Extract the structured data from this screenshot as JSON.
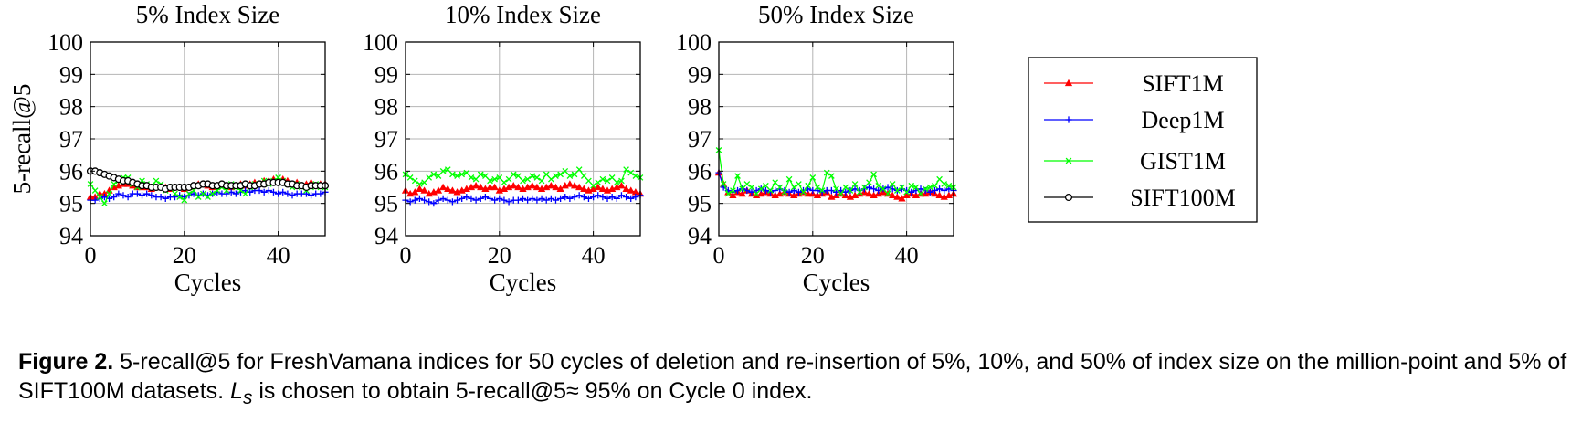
{
  "chart_data": [
    {
      "type": "line",
      "title": "5% Index Size",
      "xlabel": "Cycles",
      "ylabel": "5-recall@5",
      "xlim": [
        0,
        50
      ],
      "ylim": [
        94,
        100
      ],
      "xticks": [
        "0",
        "20",
        "40"
      ],
      "yticks": [
        "94",
        "95",
        "96",
        "97",
        "98",
        "99",
        "100"
      ],
      "grid": true,
      "series": [
        {
          "name": "SIFT1M",
          "values": [
            95.2,
            95.2,
            95.3,
            95.3,
            95.4,
            95.5,
            95.55,
            95.6,
            95.6,
            95.55,
            95.5,
            95.5,
            95.5,
            95.45,
            95.5,
            95.5,
            95.5,
            95.45,
            95.5,
            95.5,
            95.45,
            95.5,
            95.55,
            95.6,
            95.6,
            95.55,
            95.5,
            95.55,
            95.6,
            95.55,
            95.5,
            95.55,
            95.6,
            95.55,
            95.6,
            95.65,
            95.6,
            95.7,
            95.7,
            95.75,
            95.7,
            95.75,
            95.7,
            95.6,
            95.65,
            95.55,
            95.6,
            95.65,
            95.55,
            95.6,
            95.6
          ]
        },
        {
          "name": "Deep1M",
          "values": [
            95.1,
            95.1,
            95.15,
            95.2,
            95.15,
            95.2,
            95.3,
            95.25,
            95.2,
            95.3,
            95.3,
            95.25,
            95.3,
            95.25,
            95.2,
            95.2,
            95.15,
            95.2,
            95.2,
            95.25,
            95.2,
            95.25,
            95.3,
            95.25,
            95.3,
            95.25,
            95.3,
            95.35,
            95.3,
            95.3,
            95.35,
            95.3,
            95.35,
            95.4,
            95.35,
            95.4,
            95.4,
            95.35,
            95.4,
            95.35,
            95.3,
            95.35,
            95.3,
            95.25,
            95.3,
            95.3,
            95.3,
            95.25,
            95.3,
            95.3,
            95.35
          ]
        },
        {
          "name": "GIST1M",
          "values": [
            95.6,
            95.4,
            95.2,
            95.0,
            95.3,
            95.6,
            95.7,
            95.8,
            95.8,
            95.6,
            95.5,
            95.7,
            95.6,
            95.5,
            95.7,
            95.6,
            95.4,
            95.5,
            95.3,
            95.2,
            95.1,
            95.3,
            95.4,
            95.2,
            95.3,
            95.2,
            95.3,
            95.4,
            95.5,
            95.4,
            95.6,
            95.5,
            95.4,
            95.3,
            95.5,
            95.6,
            95.6,
            95.7,
            95.6,
            95.7,
            95.8,
            95.7,
            95.6,
            95.5,
            95.6,
            95.5,
            95.4,
            95.5,
            95.6,
            95.5,
            95.5
          ]
        },
        {
          "name": "SIFT100M",
          "values": [
            96.0,
            96.0,
            95.95,
            95.9,
            95.85,
            95.8,
            95.75,
            95.7,
            95.7,
            95.65,
            95.6,
            95.55,
            95.55,
            95.5,
            95.5,
            95.5,
            95.45,
            95.5,
            95.5,
            95.5,
            95.5,
            95.5,
            95.55,
            95.55,
            95.6,
            95.6,
            95.55,
            95.55,
            95.6,
            95.55,
            95.55,
            95.55,
            95.55,
            95.6,
            95.55,
            95.55,
            95.6,
            95.6,
            95.65,
            95.65,
            95.65,
            95.65,
            95.6,
            95.6,
            95.55,
            95.55,
            95.5,
            95.55,
            95.55,
            95.55,
            95.55
          ]
        }
      ]
    },
    {
      "type": "line",
      "title": "10% Index Size",
      "xlabel": "Cycles",
      "ylabel": "",
      "xlim": [
        0,
        50
      ],
      "ylim": [
        94,
        100
      ],
      "xticks": [
        "0",
        "20",
        "40"
      ],
      "yticks": [
        "94",
        "95",
        "96",
        "97",
        "98",
        "99",
        "100"
      ],
      "grid": true,
      "series": [
        {
          "name": "SIFT1M",
          "values": [
            95.4,
            95.3,
            95.35,
            95.45,
            95.4,
            95.3,
            95.35,
            95.4,
            95.5,
            95.45,
            95.4,
            95.35,
            95.4,
            95.45,
            95.5,
            95.55,
            95.5,
            95.45,
            95.5,
            95.5,
            95.4,
            95.45,
            95.5,
            95.55,
            95.5,
            95.45,
            95.5,
            95.55,
            95.5,
            95.45,
            95.5,
            95.55,
            95.5,
            95.45,
            95.55,
            95.6,
            95.55,
            95.5,
            95.45,
            95.4,
            95.45,
            95.5,
            95.45,
            95.4,
            95.45,
            95.5,
            95.55,
            95.45,
            95.4,
            95.35,
            95.3
          ]
        },
        {
          "name": "Deep1M",
          "values": [
            95.1,
            95.05,
            95.1,
            95.15,
            95.1,
            95.05,
            95.0,
            95.1,
            95.15,
            95.1,
            95.05,
            95.1,
            95.15,
            95.2,
            95.15,
            95.1,
            95.15,
            95.2,
            95.15,
            95.1,
            95.15,
            95.1,
            95.05,
            95.1,
            95.1,
            95.15,
            95.1,
            95.15,
            95.1,
            95.15,
            95.1,
            95.15,
            95.1,
            95.15,
            95.2,
            95.15,
            95.2,
            95.25,
            95.2,
            95.15,
            95.2,
            95.25,
            95.2,
            95.15,
            95.2,
            95.15,
            95.25,
            95.2,
            95.15,
            95.2,
            95.25
          ]
        },
        {
          "name": "GIST1M",
          "values": [
            95.9,
            95.8,
            95.7,
            95.6,
            95.65,
            95.8,
            95.9,
            95.85,
            96.0,
            96.05,
            95.9,
            95.85,
            95.9,
            95.95,
            95.8,
            95.75,
            95.9,
            95.85,
            95.7,
            95.75,
            95.8,
            95.65,
            95.75,
            95.9,
            95.85,
            95.7,
            95.75,
            95.85,
            95.8,
            95.7,
            95.9,
            95.75,
            95.85,
            95.9,
            96.0,
            95.85,
            95.9,
            96.05,
            95.85,
            95.7,
            95.55,
            95.65,
            95.75,
            95.7,
            95.8,
            95.65,
            95.7,
            96.05,
            95.95,
            95.85,
            95.8
          ]
        },
        {
          "name": "SIFT100M",
          "values": []
        }
      ]
    },
    {
      "type": "line",
      "title": "50% Index Size",
      "xlabel": "Cycles",
      "ylabel": "",
      "xlim": [
        0,
        50
      ],
      "ylim": [
        94,
        100
      ],
      "xticks": [
        "0",
        "20",
        "40"
      ],
      "yticks": [
        "94",
        "95",
        "96",
        "97",
        "98",
        "99",
        "100"
      ],
      "grid": true,
      "series": [
        {
          "name": "SIFT1M",
          "values": [
            95.95,
            95.6,
            95.35,
            95.25,
            95.35,
            95.3,
            95.4,
            95.3,
            95.25,
            95.3,
            95.35,
            95.3,
            95.25,
            95.3,
            95.35,
            95.3,
            95.25,
            95.3,
            95.35,
            95.3,
            95.3,
            95.25,
            95.3,
            95.35,
            95.2,
            95.25,
            95.3,
            95.25,
            95.2,
            95.25,
            95.3,
            95.35,
            95.3,
            95.25,
            95.3,
            95.35,
            95.3,
            95.25,
            95.2,
            95.15,
            95.25,
            95.3,
            95.25,
            95.3,
            95.3,
            95.35,
            95.3,
            95.25,
            95.2,
            95.25,
            95.3
          ]
        },
        {
          "name": "Deep1M",
          "values": [
            95.95,
            95.5,
            95.4,
            95.35,
            95.4,
            95.45,
            95.4,
            95.35,
            95.4,
            95.45,
            95.4,
            95.35,
            95.4,
            95.45,
            95.4,
            95.35,
            95.4,
            95.35,
            95.4,
            95.45,
            95.4,
            95.4,
            95.35,
            95.4,
            95.4,
            95.35,
            95.4,
            95.35,
            95.4,
            95.45,
            95.4,
            95.45,
            95.5,
            95.45,
            95.4,
            95.45,
            95.5,
            95.45,
            95.4,
            95.45,
            95.4,
            95.35,
            95.4,
            95.45,
            95.4,
            95.35,
            95.4,
            95.45,
            95.4,
            95.45,
            95.4
          ]
        },
        {
          "name": "GIST1M",
          "values": [
            96.65,
            95.6,
            95.3,
            95.4,
            95.85,
            95.45,
            95.6,
            95.5,
            95.3,
            95.45,
            95.55,
            95.4,
            95.65,
            95.5,
            95.35,
            95.75,
            95.5,
            95.6,
            95.35,
            95.55,
            95.8,
            95.5,
            95.4,
            95.95,
            95.85,
            95.45,
            95.3,
            95.5,
            95.4,
            95.6,
            95.35,
            95.5,
            95.65,
            95.9,
            95.55,
            95.45,
            95.3,
            95.6,
            95.4,
            95.5,
            95.35,
            95.55,
            95.5,
            95.3,
            95.45,
            95.5,
            95.55,
            95.75,
            95.6,
            95.55,
            95.5
          ]
        },
        {
          "name": "SIFT100M",
          "values": []
        }
      ]
    }
  ],
  "legend": {
    "placement": "right",
    "entries": [
      {
        "name": "SIFT1M",
        "color": "#ff0000",
        "marker": "triangle"
      },
      {
        "name": "Deep1M",
        "color": "#0000ff",
        "marker": "plus"
      },
      {
        "name": "GIST1M",
        "color": "#00ff00",
        "marker": "cross"
      },
      {
        "name": "SIFT100M",
        "color": "#000000",
        "marker": "circle"
      }
    ]
  },
  "caption": {
    "label": "Figure 2.",
    "text_1": "5-recall@5 for FreshVamana indices for 50 cycles of deletion and re-insertion of 5%, 10%, and 50% of index size on the million-point and 5% of SIFT100M datasets.",
    "ls_main": "L",
    "ls_sub": "s",
    "text_2": "is chosen to obtain 5-recall@5≈ 95% on Cycle 0 index."
  }
}
